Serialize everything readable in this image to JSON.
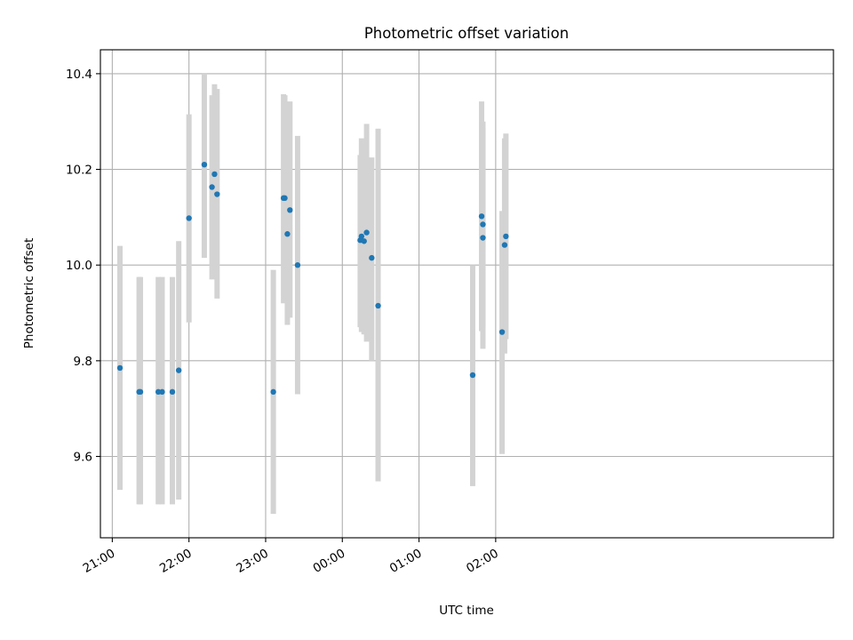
{
  "chart_data": {
    "type": "scatter",
    "title": "Photometric offset variation",
    "xlabel": "UTC time",
    "ylabel": "Photometric offset",
    "x_axis": {
      "scale": "time",
      "start": "21:00",
      "range_minutes_from_first_tick": [
        -9.3,
        564.3
      ],
      "tick_labels": [
        "21:00",
        "22:00",
        "23:00",
        "00:00",
        "01:00",
        "02:00"
      ],
      "tick_minutes": [
        0,
        60,
        120,
        180,
        240,
        300
      ],
      "tick_label_rotation": "rotated"
    },
    "y_axis": {
      "range": [
        9.43,
        10.45
      ],
      "ticks": [
        9.6,
        9.8,
        10.0,
        10.2,
        10.4
      ],
      "tick_labels": [
        "9.6",
        "9.8",
        "10.0",
        "10.2",
        "10.4"
      ]
    },
    "grid": true,
    "marker_color": "#1f77b4",
    "errorbar_color": "#d3d3d3",
    "points": [
      {
        "time": "21:06",
        "y": 9.785,
        "err_low": 9.53,
        "err_high": 10.04
      },
      {
        "time": "21:21",
        "y": 9.735,
        "err_low": 9.5,
        "err_high": 9.975
      },
      {
        "time": "21:22",
        "y": 9.735,
        "err_low": 9.5,
        "err_high": 9.975
      },
      {
        "time": "21:36",
        "y": 9.735,
        "err_low": 9.5,
        "err_high": 9.975
      },
      {
        "time": "21:39",
        "y": 9.735,
        "err_low": 9.5,
        "err_high": 9.975
      },
      {
        "time": "21:47",
        "y": 9.735,
        "err_low": 9.5,
        "err_high": 9.975
      },
      {
        "time": "21:52",
        "y": 9.78,
        "err_low": 9.51,
        "err_high": 10.05
      },
      {
        "time": "22:00",
        "y": 10.098,
        "err_low": 9.88,
        "err_high": 10.315
      },
      {
        "time": "22:12",
        "y": 10.21,
        "err_low": 10.015,
        "err_high": 10.4
      },
      {
        "time": "22:18",
        "y": 10.163,
        "err_low": 9.97,
        "err_high": 10.355
      },
      {
        "time": "22:20",
        "y": 10.19,
        "err_low": 10.0,
        "err_high": 10.378
      },
      {
        "time": "22:22",
        "y": 10.148,
        "err_low": 9.93,
        "err_high": 10.368
      },
      {
        "time": "23:06",
        "y": 9.735,
        "err_low": 9.48,
        "err_high": 9.99
      },
      {
        "time": "23:14",
        "y": 10.14,
        "err_low": 9.92,
        "err_high": 10.357
      },
      {
        "time": "23:15",
        "y": 10.14,
        "err_low": 9.925,
        "err_high": 10.355
      },
      {
        "time": "23:17",
        "y": 10.065,
        "err_low": 9.875,
        "err_high": 10.255
      },
      {
        "time": "23:19",
        "y": 10.115,
        "err_low": 9.89,
        "err_high": 10.342
      },
      {
        "time": "23:25",
        "y": 10.0,
        "err_low": 9.73,
        "err_high": 10.27
      },
      {
        "time": "00:14",
        "y": 10.052,
        "err_low": 9.87,
        "err_high": 10.23
      },
      {
        "time": "00:15",
        "y": 10.06,
        "err_low": 9.86,
        "err_high": 10.265
      },
      {
        "time": "00:17",
        "y": 10.05,
        "err_low": 9.855,
        "err_high": 10.25
      },
      {
        "time": "00:19",
        "y": 10.068,
        "err_low": 9.84,
        "err_high": 10.295
      },
      {
        "time": "00:23",
        "y": 10.015,
        "err_low": 9.8,
        "err_high": 10.225
      },
      {
        "time": "00:28",
        "y": 9.915,
        "err_low": 9.548,
        "err_high": 10.285
      },
      {
        "time": "01:42",
        "y": 9.77,
        "err_low": 9.538,
        "err_high": 10.0
      },
      {
        "time": "01:49",
        "y": 10.102,
        "err_low": 9.862,
        "err_high": 10.342
      },
      {
        "time": "01:50",
        "y": 10.085,
        "err_low": 9.87,
        "err_high": 10.3
      },
      {
        "time": "01:50",
        "y": 10.057,
        "err_low": 9.825,
        "err_high": 10.285
      },
      {
        "time": "02:05",
        "y": 9.86,
        "err_low": 9.605,
        "err_high": 10.113
      },
      {
        "time": "02:07",
        "y": 10.042,
        "err_low": 9.815,
        "err_high": 10.265
      },
      {
        "time": "02:08",
        "y": 10.06,
        "err_low": 9.845,
        "err_high": 10.275
      }
    ]
  }
}
